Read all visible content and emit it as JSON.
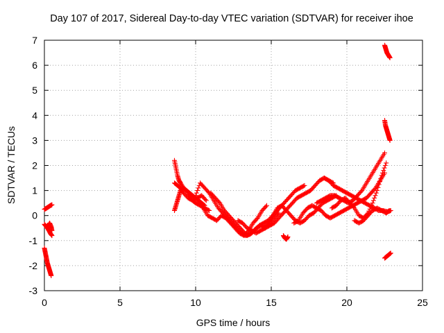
{
  "chart_data": {
    "type": "scatter",
    "title": "Day 107 of 2017, Sidereal Day-to-day VTEC variation (SDTVAR) for receiver ihoe",
    "xlabel": "GPS time / hours",
    "ylabel": "SDTVAR / TECUs",
    "xlim": [
      0,
      25
    ],
    "ylim": [
      -3,
      7
    ],
    "x_ticks": [
      "0",
      "5",
      "10",
      "15",
      "20",
      "25"
    ],
    "y_ticks": [
      "-3",
      "-2",
      "-1",
      "0",
      "1",
      "2",
      "3",
      "4",
      "5",
      "6",
      "7"
    ],
    "grid": true,
    "marker": "+",
    "color": "#ff0000",
    "series": [
      {
        "x": [
          0.0,
          0.1,
          0.2,
          0.3,
          0.4,
          0.5
        ],
        "y": [
          0.25,
          0.28,
          0.32,
          0.36,
          0.4,
          0.43
        ]
      },
      {
        "x": [
          0.0,
          0.1,
          0.2,
          0.3,
          0.4,
          0.5
        ],
        "y": [
          -0.35,
          -0.42,
          -0.5,
          -0.6,
          -0.72,
          -0.8
        ]
      },
      {
        "x": [
          0.15,
          0.25,
          0.35,
          0.45,
          0.5
        ],
        "y": [
          -0.5,
          -0.4,
          -0.3,
          -0.45,
          -0.6
        ]
      },
      {
        "x": [
          0.0,
          0.05,
          0.1,
          0.15,
          0.2,
          0.25,
          0.3,
          0.35,
          0.4,
          0.45
        ],
        "y": [
          -1.3,
          -1.45,
          -1.6,
          -1.75,
          -1.9,
          -2.0,
          -2.1,
          -2.2,
          -2.3,
          -2.4
        ]
      },
      {
        "x": [
          8.6,
          8.7,
          8.8,
          8.9,
          9.0,
          9.2,
          9.4,
          9.6,
          9.8,
          10.0,
          10.2,
          10.4,
          10.6
        ],
        "y": [
          2.2,
          1.9,
          1.6,
          1.4,
          1.3,
          1.1,
          1.0,
          0.9,
          0.8,
          0.7,
          0.6,
          0.5,
          0.4
        ]
      },
      {
        "x": [
          8.6,
          8.7,
          8.8,
          8.9,
          9.0,
          9.2,
          9.4,
          9.6,
          9.8,
          10.0,
          10.3,
          10.6,
          10.9
        ],
        "y": [
          0.2,
          0.4,
          0.6,
          0.8,
          1.0,
          1.1,
          1.0,
          0.8,
          0.6,
          0.5,
          0.4,
          0.3,
          0.2
        ]
      },
      {
        "x": [
          8.6,
          8.8,
          9.0,
          9.2,
          9.5,
          9.8,
          10.1,
          10.4,
          10.7
        ],
        "y": [
          1.3,
          1.2,
          1.1,
          0.9,
          0.7,
          0.6,
          0.7,
          0.8,
          0.6
        ]
      },
      {
        "x": [
          10.0,
          10.3,
          10.6,
          10.9,
          11.2,
          11.5,
          11.8,
          12.1,
          12.4,
          12.7,
          13.0,
          13.3,
          13.6,
          13.9,
          14.2,
          14.5,
          14.8,
          15.1,
          15.4,
          15.7,
          16.0,
          16.3,
          16.6,
          16.9,
          17.2
        ],
        "y": [
          0.8,
          1.3,
          1.1,
          0.9,
          0.6,
          0.3,
          0.1,
          -0.1,
          -0.3,
          -0.5,
          -0.7,
          -0.8,
          -0.75,
          -0.6,
          -0.4,
          -0.3,
          -0.2,
          0.0,
          0.2,
          0.4,
          0.6,
          0.8,
          1.0,
          1.1,
          1.2
        ]
      },
      {
        "x": [
          10.2,
          10.5,
          10.8,
          11.1,
          11.4,
          11.7,
          12.0,
          12.3,
          12.6,
          12.9,
          13.2,
          13.5,
          13.8,
          14.1,
          14.4,
          14.7
        ],
        "y": [
          0.5,
          0.3,
          0.0,
          -0.1,
          -0.2,
          0.0,
          -0.1,
          -0.3,
          -0.5,
          -0.7,
          -0.8,
          -0.6,
          -0.3,
          -0.1,
          0.2,
          0.4
        ]
      },
      {
        "x": [
          11.0,
          11.3,
          11.6,
          11.9,
          12.2,
          12.5,
          12.8,
          13.1,
          13.4,
          13.7,
          14.0,
          14.3,
          14.6,
          14.9,
          15.2,
          15.5
        ],
        "y": [
          0.9,
          0.7,
          0.5,
          0.2,
          0.0,
          -0.2,
          -0.4,
          -0.6,
          -0.8,
          -0.7,
          -0.5,
          -0.4,
          -0.5,
          -0.3,
          -0.1,
          0.1
        ]
      },
      {
        "x": [
          12.8,
          13.1,
          13.4,
          13.7,
          14.0,
          14.3,
          14.6,
          14.9,
          15.2,
          15.5,
          15.8,
          16.1,
          16.4,
          16.7,
          17.0,
          17.3,
          17.6,
          17.9,
          18.2,
          18.5,
          18.8,
          19.1
        ],
        "y": [
          -0.2,
          -0.3,
          -0.5,
          -0.6,
          -0.7,
          -0.6,
          -0.5,
          -0.4,
          -0.3,
          -0.1,
          0.1,
          0.3,
          0.5,
          0.7,
          0.8,
          0.9,
          1.0,
          1.2,
          1.4,
          1.5,
          1.4,
          1.3
        ]
      },
      {
        "x": [
          14.5,
          14.8,
          15.1,
          15.4,
          15.7,
          16.0,
          16.3,
          16.6,
          16.9,
          17.2,
          17.5,
          17.8,
          18.1,
          18.4,
          18.7,
          19.0,
          19.3
        ],
        "y": [
          -0.5,
          -0.3,
          0.0,
          0.3,
          0.4,
          0.2,
          0.0,
          -0.2,
          -0.3,
          -0.2,
          0.0,
          0.1,
          0.3,
          0.5,
          0.6,
          0.7,
          0.8
        ]
      },
      {
        "x": [
          15.8,
          15.9,
          16.0,
          16.1
        ],
        "y": [
          -0.8,
          -0.9,
          -0.95,
          -0.85
        ]
      },
      {
        "x": [
          16.5,
          16.8,
          17.1,
          17.4,
          17.7,
          18.0,
          18.3,
          18.6,
          18.9,
          19.2,
          19.5,
          19.8,
          20.1,
          20.4,
          20.7,
          21.0,
          21.3,
          21.6,
          21.9,
          22.2,
          22.5
        ],
        "y": [
          -0.3,
          -0.2,
          0.1,
          0.3,
          0.4,
          0.3,
          0.2,
          0.0,
          -0.1,
          0.0,
          0.1,
          0.2,
          0.3,
          0.4,
          0.5,
          0.6,
          0.7,
          0.9,
          1.1,
          1.4,
          1.7
        ]
      },
      {
        "x": [
          18.5,
          18.8,
          19.1,
          19.4,
          19.7,
          20.0,
          20.3,
          20.6,
          20.9,
          21.2,
          21.5,
          21.8,
          22.1,
          22.4,
          22.7,
          22.9
        ],
        "y": [
          1.5,
          1.4,
          1.2,
          1.1,
          1.0,
          0.9,
          0.8,
          0.7,
          0.6,
          0.5,
          0.4,
          0.3,
          0.2,
          0.2,
          0.15,
          0.2
        ]
      },
      {
        "x": [
          18.0,
          18.3,
          18.6,
          18.9,
          19.2,
          19.5,
          19.8,
          20.1,
          20.4,
          20.7,
          21.0,
          21.3,
          21.6,
          21.9,
          22.2,
          22.5
        ],
        "y": [
          0.5,
          0.6,
          0.7,
          0.8,
          0.8,
          0.7,
          0.6,
          0.5,
          0.6,
          0.8,
          1.0,
          1.3,
          1.6,
          1.9,
          2.2,
          2.5
        ]
      },
      {
        "x": [
          19.0,
          19.3,
          19.6,
          19.9,
          20.2,
          20.5,
          20.8,
          21.1,
          21.4,
          21.7,
          22.0,
          22.3,
          22.6
        ],
        "y": [
          0.3,
          0.4,
          0.6,
          0.7,
          0.5,
          0.3,
          0.0,
          -0.1,
          0.1,
          0.5,
          1.0,
          1.6,
          2.1
        ]
      },
      {
        "x": [
          20.5,
          20.8,
          21.1,
          21.4,
          21.7,
          22.0,
          22.3,
          22.6,
          22.8
        ],
        "y": [
          -0.2,
          -0.3,
          -0.2,
          0.0,
          0.2,
          0.3,
          0.2,
          0.1,
          0.2
        ]
      },
      {
        "x": [
          22.5,
          22.55,
          22.6,
          22.65,
          22.7,
          22.75,
          22.8,
          22.85
        ],
        "y": [
          6.8,
          6.7,
          6.6,
          6.5,
          6.45,
          6.4,
          6.35,
          6.3
        ]
      },
      {
        "x": [
          22.5,
          22.55,
          22.6,
          22.65,
          22.7,
          22.75,
          22.8,
          22.85
        ],
        "y": [
          3.8,
          3.6,
          3.5,
          3.4,
          3.3,
          3.2,
          3.1,
          3.0
        ]
      },
      {
        "x": [
          22.5,
          22.6,
          22.7,
          22.8,
          22.9
        ],
        "y": [
          -1.7,
          -1.65,
          -1.6,
          -1.55,
          -1.5
        ]
      }
    ]
  }
}
